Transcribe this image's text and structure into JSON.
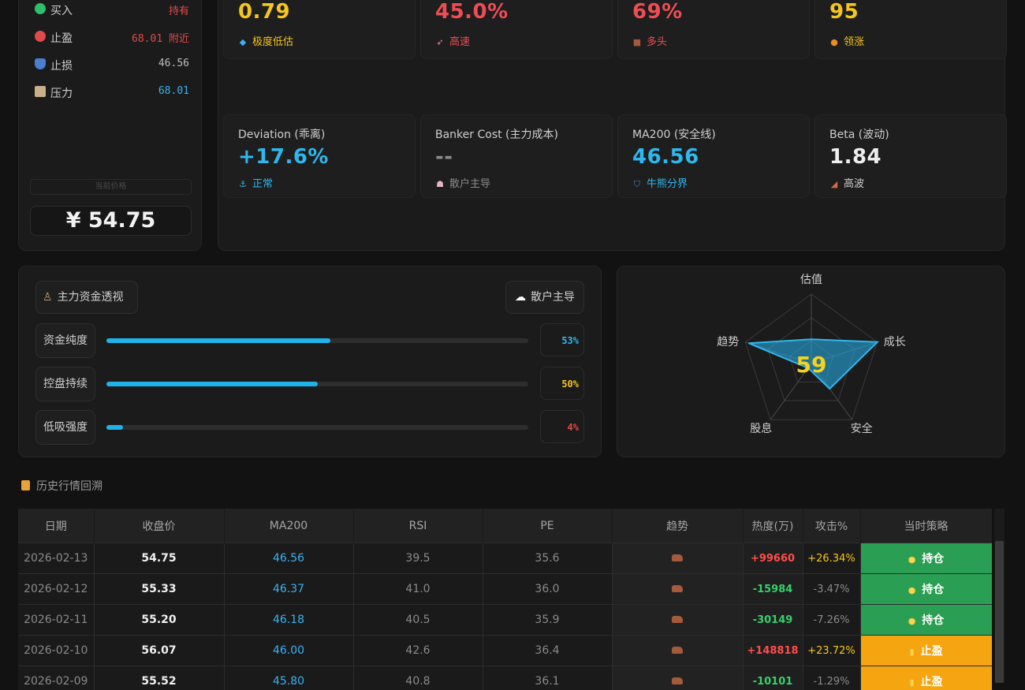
{
  "left": {
    "rows": [
      {
        "label": "买入",
        "value": "持有",
        "icon_color": "#2fbf6a",
        "value_color": "#e24a4a",
        "icon": "green-circle-icon"
      },
      {
        "label": "止盈",
        "value": "68.01 附近",
        "icon_color": "#e24a4a",
        "value_color": "#e24a4a",
        "icon": "red-circle-icon"
      },
      {
        "label": "止损",
        "value": "46.56",
        "icon_color": "#4a7fd0",
        "value_color": "#bdbdbd",
        "icon": "shield-icon"
      },
      {
        "label": "压力",
        "value": "68.01",
        "icon_color": "#c9b08a",
        "value_color": "#3bb2f0",
        "icon": "resistance-icon"
      }
    ],
    "current_label": "当前价格",
    "current_price": "¥ 54.75"
  },
  "metrics": [
    {
      "title": "",
      "value": "0.79",
      "sub": "极度低估",
      "value_color": "#f5c61c",
      "sub_color": "#f5c61c",
      "icon": "gem-icon",
      "icon_color": "#3bb2f0"
    },
    {
      "title": "",
      "value": "45.0%",
      "sub": "高速",
      "value_color": "#ef4d55",
      "sub_color": "#ef4d55",
      "icon": "rocket-icon",
      "icon_color": "#e87fb0"
    },
    {
      "title": "",
      "value": "69%",
      "sub": "多头",
      "value_color": "#ef4d55",
      "sub_color": "#ef4d55",
      "icon": "bull-icon",
      "icon_color": "#a55a3c"
    },
    {
      "title": "",
      "value": "95",
      "sub": "领涨",
      "value_color": "#f5c61c",
      "sub_color": "#f5c61c",
      "icon": "fire-icon",
      "icon_color": "#f08a24"
    },
    {
      "title": "Deviation (乖离)",
      "value": "+17.6%",
      "sub": "正常",
      "value_color": "#2fb7ee",
      "sub_color": "#2fb7ee",
      "icon": "anchor-icon",
      "icon_color": "#2fb7ee"
    },
    {
      "title": "Banker Cost (主力成本)",
      "value": "--",
      "sub": "散户主导",
      "value_color": "#8a8a8a",
      "sub_color": "#8a8a8a",
      "icon": "ghost-icon",
      "icon_color": "#e8b4c8"
    },
    {
      "title": "MA200 (安全线)",
      "value": "46.56",
      "sub": "牛熊分界",
      "value_color": "#2fb7ee",
      "sub_color": "#2fb7ee",
      "icon": "shield-icon",
      "icon_color": "#4a7fd0"
    },
    {
      "title": "Beta (波动)",
      "value": "1.84",
      "sub": "高波",
      "value_color": "#eeeeee",
      "sub_color": "#cfcfcf",
      "icon": "chart-up-icon",
      "icon_color": "#d46a4a"
    }
  ],
  "capital": {
    "title": "主力资金透视",
    "badge": "散户主导",
    "rows": [
      {
        "label": "资金纯度",
        "pct_text": "53%",
        "pct": 0.53,
        "pct_color": "#2fb7ee"
      },
      {
        "label": "控盘持续",
        "pct_text": "50%",
        "pct": 0.5,
        "pct_color": "#f5c61c"
      },
      {
        "label": "低吸强度",
        "pct_text": "4%",
        "pct": 0.04,
        "pct_color": "#e24a4a"
      }
    ]
  },
  "radar": {
    "score": "59",
    "axes": [
      {
        "label": "估值",
        "value": 0.35
      },
      {
        "label": "成长",
        "value": 1.0
      },
      {
        "label": "安全",
        "value": 0.45
      },
      {
        "label": "股息",
        "value": 0.0
      },
      {
        "label": "趋势",
        "value": 0.95
      }
    ]
  },
  "history": {
    "title": "历史行情回溯",
    "columns": [
      "日期",
      "收盘价",
      "MA200",
      "RSI",
      "PE",
      "趋势",
      "热度(万)",
      "攻击%",
      "当时策略"
    ],
    "rows": [
      {
        "date": "2026-02-13",
        "close": "54.75",
        "ma200": "46.56",
        "rsi": "39.5",
        "pe": "35.6",
        "heat": "+99660",
        "heat_color": "#ff4d4d",
        "attack": "+26.34%",
        "attack_color": "#f5c61c",
        "strategy": "持仓",
        "strategy_type": "hold"
      },
      {
        "date": "2026-02-12",
        "close": "55.33",
        "ma200": "46.37",
        "rsi": "41.0",
        "pe": "36.0",
        "heat": "-15984",
        "heat_color": "#36d06a",
        "attack": "-3.47%",
        "attack_color": "#8a8a8a",
        "strategy": "持仓",
        "strategy_type": "hold"
      },
      {
        "date": "2026-02-11",
        "close": "55.20",
        "ma200": "46.18",
        "rsi": "40.5",
        "pe": "35.9",
        "heat": "-30149",
        "heat_color": "#36d06a",
        "attack": "-7.26%",
        "attack_color": "#8a8a8a",
        "strategy": "持仓",
        "strategy_type": "hold"
      },
      {
        "date": "2026-02-10",
        "close": "56.07",
        "ma200": "46.00",
        "rsi": "42.6",
        "pe": "36.4",
        "heat": "+148818",
        "heat_color": "#ff4d4d",
        "attack": "+23.72%",
        "attack_color": "#f5c61c",
        "strategy": "止盈",
        "strategy_type": "stop"
      },
      {
        "date": "2026-02-09",
        "close": "55.52",
        "ma200": "45.80",
        "rsi": "40.8",
        "pe": "36.1",
        "heat": "-10101",
        "heat_color": "#36d06a",
        "attack": "-1.29%",
        "attack_color": "#8a8a8a",
        "strategy": "止盈",
        "strategy_type": "stop"
      }
    ]
  }
}
